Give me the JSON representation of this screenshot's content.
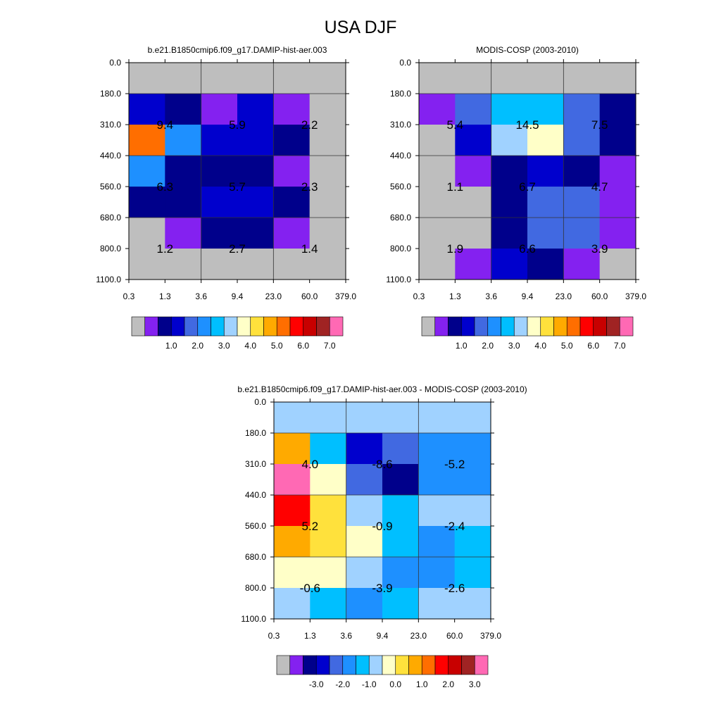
{
  "figure": {
    "title": "USA DJF"
  },
  "chart_data": [
    {
      "type": "heatmap",
      "title": "b.e21.B1850cmip6.f09_g17.DAMIP-hist-aer.003",
      "xticks": [
        "0.3",
        "1.3",
        "3.6",
        "9.4",
        "23.0",
        "60.0",
        "379.0"
      ],
      "yticks": [
        "0.0",
        "180.0",
        "310.0",
        "440.0",
        "560.0",
        "680.0",
        "800.0",
        "1100.0"
      ],
      "grid": [
        [
          0,
          0,
          0,
          0,
          0,
          0
        ],
        [
          3,
          2,
          1,
          3,
          1,
          0
        ],
        [
          11,
          5,
          3,
          3,
          2,
          0
        ],
        [
          5,
          2,
          2,
          2,
          1,
          0
        ],
        [
          2,
          2,
          3,
          3,
          2,
          0
        ],
        [
          0,
          1,
          2,
          2,
          1,
          0
        ],
        [
          0,
          0,
          0,
          0,
          0,
          0
        ]
      ],
      "annotations": [
        {
          "row": 1,
          "col": 0,
          "text": "9.4"
        },
        {
          "row": 1,
          "col": 1,
          "text": "5.9"
        },
        {
          "row": 1,
          "col": 2,
          "text": "2.2"
        },
        {
          "row": 2,
          "col": 0,
          "text": "6.3"
        },
        {
          "row": 2,
          "col": 1,
          "text": "5.7"
        },
        {
          "row": 2,
          "col": 2,
          "text": "2.3"
        },
        {
          "row": 3,
          "col": 0,
          "text": "1.2"
        },
        {
          "row": 3,
          "col": 1,
          "text": "2.7"
        },
        {
          "row": 3,
          "col": 2,
          "text": "1.4"
        }
      ],
      "colorbar": {
        "colors": [
          "#bebebe",
          "#8421f0",
          "#00008b",
          "#0000cd",
          "#4169e1",
          "#1e90ff",
          "#00bfff",
          "#a0d2ff",
          "#ffffc8",
          "#ffe13c",
          "#ffaa00",
          "#ff6e00",
          "#ff0000",
          "#c80000",
          "#a02323",
          "#ff69b4"
        ],
        "labels": [
          "1.0",
          "2.0",
          "3.0",
          "4.0",
          "5.0",
          "6.0",
          "7.0"
        ]
      }
    },
    {
      "type": "heatmap",
      "title": "MODIS-COSP (2003-2010)",
      "xticks": [
        "0.3",
        "1.3",
        "3.6",
        "9.4",
        "23.0",
        "60.0",
        "379.0"
      ],
      "yticks": [
        "0.0",
        "180.0",
        "310.0",
        "440.0",
        "560.0",
        "680.0",
        "800.0",
        "1100.0"
      ],
      "grid": [
        [
          0,
          0,
          0,
          0,
          0,
          0
        ],
        [
          1,
          4,
          6,
          6,
          4,
          2
        ],
        [
          0,
          3,
          7,
          8,
          4,
          2
        ],
        [
          0,
          1,
          2,
          3,
          2,
          1
        ],
        [
          0,
          0,
          2,
          4,
          4,
          1
        ],
        [
          0,
          0,
          2,
          4,
          4,
          1
        ],
        [
          0,
          1,
          3,
          2,
          1,
          0
        ]
      ],
      "annotations": [
        {
          "row": 1,
          "col": 0,
          "text": "5.4"
        },
        {
          "row": 1,
          "col": 1,
          "text": "14.5"
        },
        {
          "row": 1,
          "col": 2,
          "text": "7.5"
        },
        {
          "row": 2,
          "col": 0,
          "text": "1.1"
        },
        {
          "row": 2,
          "col": 1,
          "text": "6.7"
        },
        {
          "row": 2,
          "col": 2,
          "text": "4.7"
        },
        {
          "row": 3,
          "col": 0,
          "text": "1.9"
        },
        {
          "row": 3,
          "col": 1,
          "text": "6.6"
        },
        {
          "row": 3,
          "col": 2,
          "text": "3.9"
        }
      ],
      "colorbar": {
        "colors": [
          "#bebebe",
          "#8421f0",
          "#00008b",
          "#0000cd",
          "#4169e1",
          "#1e90ff",
          "#00bfff",
          "#a0d2ff",
          "#ffffc8",
          "#ffe13c",
          "#ffaa00",
          "#ff6e00",
          "#ff0000",
          "#c80000",
          "#a02323",
          "#ff69b4"
        ],
        "labels": [
          "1.0",
          "2.0",
          "3.0",
          "4.0",
          "5.0",
          "6.0",
          "7.0"
        ]
      }
    },
    {
      "type": "heatmap",
      "title": "b.e21.B1850cmip6.f09_g17.DAMIP-hist-aer.003 - MODIS-COSP (2003-2010)",
      "xticks": [
        "0.3",
        "1.3",
        "3.6",
        "9.4",
        "23.0",
        "60.0",
        "379.0"
      ],
      "yticks": [
        "0.0",
        "180.0",
        "310.0",
        "440.0",
        "560.0",
        "680.0",
        "800.0",
        "1100.0"
      ],
      "grid": [
        [
          7,
          7,
          7,
          7,
          7,
          7
        ],
        [
          10,
          6,
          3,
          4,
          5,
          5
        ],
        [
          15,
          8,
          4,
          2,
          5,
          5
        ],
        [
          12,
          9,
          7,
          6,
          7,
          7
        ],
        [
          10,
          9,
          8,
          6,
          5,
          6
        ],
        [
          8,
          8,
          7,
          5,
          5,
          6
        ],
        [
          7,
          6,
          5,
          6,
          7,
          7
        ]
      ],
      "annotations": [
        {
          "row": 1,
          "col": 0,
          "text": "4.0"
        },
        {
          "row": 1,
          "col": 1,
          "text": "-8.6"
        },
        {
          "row": 1,
          "col": 2,
          "text": "-5.2"
        },
        {
          "row": 2,
          "col": 0,
          "text": "5.2"
        },
        {
          "row": 2,
          "col": 1,
          "text": "-0.9"
        },
        {
          "row": 2,
          "col": 2,
          "text": "-2.4"
        },
        {
          "row": 3,
          "col": 0,
          "text": "-0.6"
        },
        {
          "row": 3,
          "col": 1,
          "text": "-3.9"
        },
        {
          "row": 3,
          "col": 2,
          "text": "-2.6"
        }
      ],
      "colorbar": {
        "colors": [
          "#bebebe",
          "#8421f0",
          "#00008b",
          "#0000cd",
          "#4169e1",
          "#1e90ff",
          "#00bfff",
          "#a0d2ff",
          "#ffffc8",
          "#ffe13c",
          "#ffaa00",
          "#ff6e00",
          "#ff0000",
          "#c80000",
          "#a02323",
          "#ff69b4"
        ],
        "labels": [
          "-3.0",
          "-2.0",
          "-1.0",
          "0.0",
          "1.0",
          "2.0",
          "3.0"
        ]
      }
    }
  ]
}
